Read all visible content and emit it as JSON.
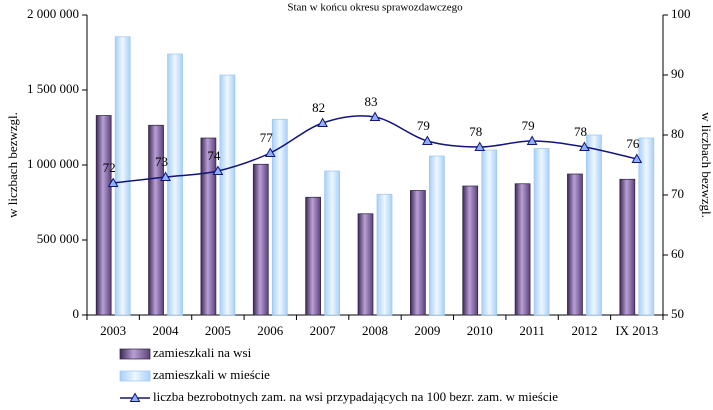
{
  "chart_data": {
    "type": "bar-line",
    "title": "Stan w końcu okresu sprawozdawczego",
    "ylabel": "w liczbach bezwzgl.",
    "y2label": "w liczbach bezwzgl.",
    "categories": [
      "2003",
      "2004",
      "2005",
      "2006",
      "2007",
      "2008",
      "2009",
      "2010",
      "2011",
      "2012",
      "IX 2013"
    ],
    "series": [
      {
        "name": "zamieszkali na wsi",
        "type": "bar",
        "color": "#8a6aa8",
        "values": [
          1330000,
          1265000,
          1180000,
          1005000,
          785000,
          675000,
          830000,
          860000,
          875000,
          940000,
          905000
        ]
      },
      {
        "name": "zamieszkali w mieście",
        "type": "bar",
        "color": "#c6e2ff",
        "values": [
          1855000,
          1740000,
          1600000,
          1305000,
          960000,
          805000,
          1060000,
          1100000,
          1110000,
          1200000,
          1180000
        ]
      },
      {
        "name": "liczba bezrobotnych zam. na wsi przypadających na 100 bezr. zam. w mieście",
        "type": "line",
        "axis": "y2",
        "color": "#14147a",
        "values": [
          72,
          73,
          74,
          77,
          82,
          83,
          79,
          78,
          79,
          78,
          76
        ]
      }
    ],
    "ylim": [
      0,
      2000000
    ],
    "yticks": [
      0,
      {
        "value": 500000,
        "label": "500 000"
      },
      {
        "value": 1000000,
        "label": "1 000 000"
      },
      {
        "value": 1500000,
        "label": "1 500 000"
      },
      {
        "value": 2000000,
        "label": "2 000 000"
      }
    ],
    "y2lim": [
      50,
      100
    ],
    "y2ticks": [
      50,
      60,
      70,
      80,
      90,
      100
    ],
    "legend": "bottom"
  }
}
